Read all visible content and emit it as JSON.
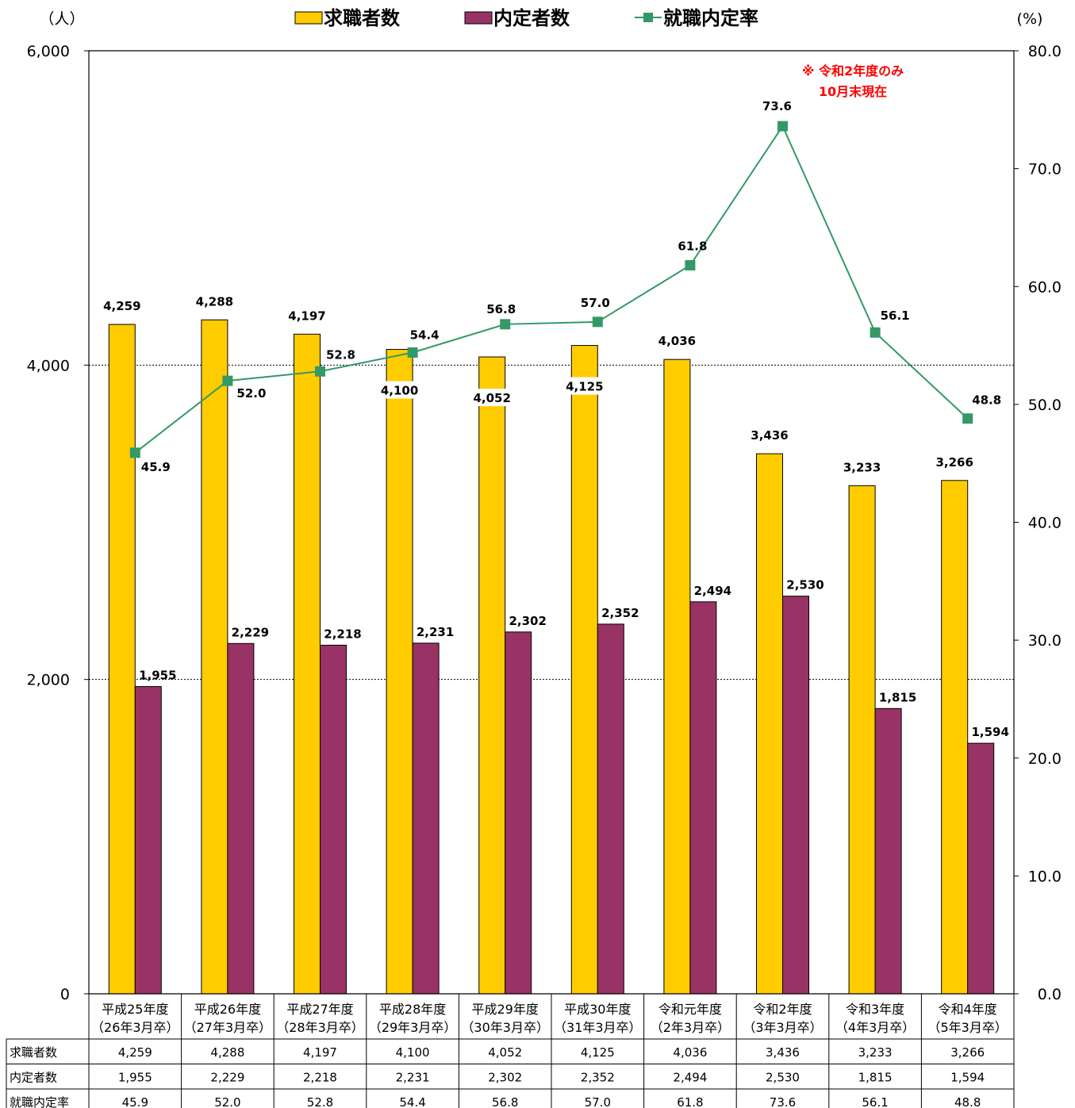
{
  "chart_data": {
    "type": "bar+line",
    "categories": [
      [
        "平成25年度",
        "（26年3月卒）"
      ],
      [
        "平成26年度",
        "（27年3月卒）"
      ],
      [
        "平成27年度",
        "（28年3月卒）"
      ],
      [
        "平成28年度",
        "（29年3月卒）"
      ],
      [
        "平成29年度",
        "（30年3月卒）"
      ],
      [
        "平成30年度",
        "（31年3月卒）"
      ],
      [
        "令和元年度",
        "（2年3月卒）"
      ],
      [
        "令和2年度",
        "（3年3月卒）"
      ],
      [
        "令和3年度",
        "（4年3月卒）"
      ],
      [
        "令和4年度",
        "（5年3月卒）"
      ]
    ],
    "series": [
      {
        "name": "求職者数",
        "type": "bar",
        "axis": "left",
        "color": "#FFCC00",
        "values": [
          4259,
          4288,
          4197,
          4100,
          4052,
          4125,
          4036,
          3436,
          3233,
          3266
        ],
        "labels": [
          "4,259",
          "4,288",
          "4,197",
          "4,100",
          "4,052",
          "4,125",
          "4,036",
          "3,436",
          "3,233",
          "3,266"
        ]
      },
      {
        "name": "内定者数",
        "type": "bar",
        "axis": "left",
        "color": "#993366",
        "values": [
          1955,
          2229,
          2218,
          2231,
          2302,
          2352,
          2494,
          2530,
          1815,
          1594
        ],
        "labels": [
          "1,955",
          "2,229",
          "2,218",
          "2,231",
          "2,302",
          "2,352",
          "2,494",
          "2,530",
          "1,815",
          "1,594"
        ]
      },
      {
        "name": "就職内定率",
        "type": "line",
        "axis": "right",
        "color": "#339966",
        "values": [
          45.9,
          52.0,
          52.8,
          54.4,
          56.8,
          57.0,
          61.8,
          73.6,
          56.1,
          48.8
        ],
        "labels": [
          "45.9",
          "52.0",
          "52.8",
          "54.4",
          "56.8",
          "57.0",
          "61.8",
          "73.6",
          "56.1",
          "48.8"
        ]
      }
    ],
    "y_left": {
      "unit": "（人）",
      "range": [
        0,
        6000
      ],
      "ticks": [
        "0",
        "2,000",
        "4,000",
        "6,000"
      ],
      "tick_values": [
        0,
        2000,
        4000,
        6000
      ]
    },
    "y_right": {
      "unit": "(%)",
      "range": [
        0,
        80
      ],
      "ticks": [
        "0.0",
        "10.0",
        "20.0",
        "30.0",
        "40.0",
        "50.0",
        "60.0",
        "70.0",
        "80.0"
      ],
      "tick_values": [
        0,
        10,
        20,
        30,
        40,
        50,
        60,
        70,
        80
      ]
    },
    "grid": true,
    "legend": "top-center",
    "annotation": {
      "lines": [
        "※ 令和2年度のみ",
        "10月末現在"
      ],
      "color": "#FF0000"
    },
    "table": {
      "row_headers": [
        "求職者数",
        "内定者数",
        "就職内定率"
      ]
    }
  }
}
